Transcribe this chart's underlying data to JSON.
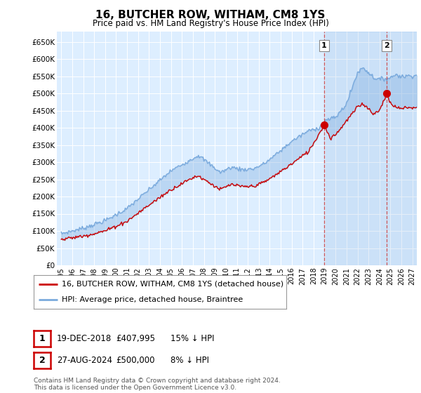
{
  "title": "16, BUTCHER ROW, WITHAM, CM8 1YS",
  "subtitle": "Price paid vs. HM Land Registry's House Price Index (HPI)",
  "legend_line1": "16, BUTCHER ROW, WITHAM, CM8 1YS (detached house)",
  "legend_line2": "HPI: Average price, detached house, Braintree",
  "annotation1_label": "1",
  "annotation1_date": "19-DEC-2018",
  "annotation1_price": "£407,995",
  "annotation1_hpi": "15% ↓ HPI",
  "annotation1_year": 2018.96,
  "annotation1_value": 407995,
  "annotation2_label": "2",
  "annotation2_date": "27-AUG-2024",
  "annotation2_price": "£500,000",
  "annotation2_hpi": "8% ↓ HPI",
  "annotation2_year": 2024.65,
  "annotation2_value": 500000,
  "hpi_color": "#7aaadd",
  "price_color": "#cc0000",
  "background_plot": "#ddeeff",
  "background_fig": "#ffffff",
  "grid_color": "#bbccdd",
  "footnote": "Contains HM Land Registry data © Crown copyright and database right 2024.\nThis data is licensed under the Open Government Licence v3.0.",
  "ylim": [
    0,
    680000
  ],
  "yticks": [
    0,
    50000,
    100000,
    150000,
    200000,
    250000,
    300000,
    350000,
    400000,
    450000,
    500000,
    550000,
    600000,
    650000
  ],
  "ytick_labels": [
    "£0",
    "£50K",
    "£100K",
    "£150K",
    "£200K",
    "£250K",
    "£300K",
    "£350K",
    "£400K",
    "£450K",
    "£500K",
    "£550K",
    "£600K",
    "£650K"
  ],
  "xlim_min": 1994.6,
  "xlim_max": 2027.4
}
